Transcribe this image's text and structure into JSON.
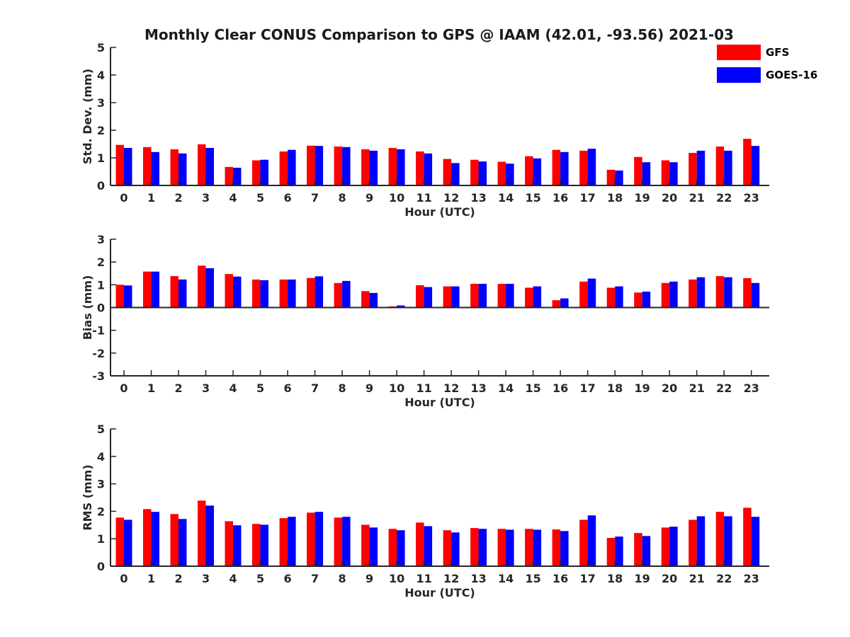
{
  "title": "Monthly Clear CONUS Comparison to GPS @ IAAM (42.01, -93.56) 2021-03",
  "legend": {
    "placement": "top-right",
    "items": [
      {
        "name": "GFS",
        "color": "#ff0000"
      },
      {
        "name": "GOES-16",
        "color": "#0000ff"
      }
    ]
  },
  "chart_data": [
    {
      "type": "bar",
      "title": "Monthly Clear CONUS Comparison to GPS @ IAAM (42.01, -93.56) 2021-03",
      "xlabel": "Hour (UTC)",
      "ylabel": "Std. Dev. (mm)",
      "ylim": [
        0,
        5
      ],
      "yticks": [
        "0",
        "1",
        "2",
        "3",
        "4",
        "5"
      ],
      "grid": false,
      "categories": [
        "0",
        "1",
        "2",
        "3",
        "4",
        "5",
        "6",
        "7",
        "8",
        "9",
        "10",
        "11",
        "12",
        "13",
        "14",
        "15",
        "16",
        "17",
        "18",
        "19",
        "20",
        "21",
        "22",
        "23"
      ],
      "series": [
        {
          "name": "GFS",
          "color": "#ff0000",
          "values": [
            1.47,
            1.39,
            1.31,
            1.49,
            0.67,
            0.91,
            1.23,
            1.44,
            1.41,
            1.31,
            1.36,
            1.23,
            0.96,
            0.93,
            0.86,
            1.06,
            1.29,
            1.26,
            0.57,
            1.03,
            0.91,
            1.18,
            1.41,
            1.69
          ]
        },
        {
          "name": "GOES-16",
          "color": "#0000ff",
          "values": [
            1.36,
            1.21,
            1.16,
            1.36,
            0.64,
            0.93,
            1.29,
            1.43,
            1.39,
            1.26,
            1.31,
            1.16,
            0.81,
            0.87,
            0.79,
            0.98,
            1.21,
            1.33,
            0.54,
            0.84,
            0.84,
            1.26,
            1.26,
            1.43
          ]
        }
      ]
    },
    {
      "type": "bar",
      "xlabel": "Hour (UTC)",
      "ylabel": "Bias (mm)",
      "ylim": [
        -3,
        3
      ],
      "yticks": [
        "-3",
        "-2",
        "-1",
        "0",
        "1",
        "2",
        "3"
      ],
      "grid": false,
      "categories": [
        "0",
        "1",
        "2",
        "3",
        "4",
        "5",
        "6",
        "7",
        "8",
        "9",
        "10",
        "11",
        "12",
        "13",
        "14",
        "15",
        "16",
        "17",
        "18",
        "19",
        "20",
        "21",
        "22",
        "23"
      ],
      "series": [
        {
          "name": "GFS",
          "color": "#ff0000",
          "values": [
            1.0,
            1.58,
            1.38,
            1.84,
            1.47,
            1.23,
            1.23,
            1.3,
            1.08,
            0.72,
            0.05,
            0.98,
            0.93,
            1.04,
            1.04,
            0.87,
            0.32,
            1.14,
            0.87,
            0.66,
            1.08,
            1.23,
            1.38,
            1.29
          ]
        },
        {
          "name": "GOES-16",
          "color": "#0000ff",
          "values": [
            0.97,
            1.58,
            1.23,
            1.73,
            1.36,
            1.2,
            1.23,
            1.37,
            1.17,
            0.64,
            0.09,
            0.9,
            0.93,
            1.04,
            1.04,
            0.93,
            0.4,
            1.27,
            0.93,
            0.7,
            1.14,
            1.33,
            1.33,
            1.08
          ]
        }
      ]
    },
    {
      "type": "bar",
      "xlabel": "Hour (UTC)",
      "ylabel": "RMS (mm)",
      "ylim": [
        0,
        5
      ],
      "yticks": [
        "0",
        "1",
        "2",
        "3",
        "4",
        "5"
      ],
      "grid": false,
      "categories": [
        "0",
        "1",
        "2",
        "3",
        "4",
        "5",
        "6",
        "7",
        "8",
        "9",
        "10",
        "11",
        "12",
        "13",
        "14",
        "15",
        "16",
        "17",
        "18",
        "19",
        "20",
        "21",
        "22",
        "23"
      ],
      "series": [
        {
          "name": "GFS",
          "color": "#ff0000",
          "values": [
            1.77,
            2.08,
            1.9,
            2.39,
            1.64,
            1.54,
            1.75,
            1.95,
            1.77,
            1.51,
            1.36,
            1.59,
            1.31,
            1.39,
            1.36,
            1.36,
            1.34,
            1.69,
            1.03,
            1.21,
            1.41,
            1.69,
            1.98,
            2.13
          ]
        },
        {
          "name": "GOES-16",
          "color": "#0000ff",
          "values": [
            1.69,
            1.98,
            1.72,
            2.21,
            1.49,
            1.51,
            1.8,
            1.98,
            1.8,
            1.41,
            1.31,
            1.46,
            1.23,
            1.36,
            1.33,
            1.33,
            1.28,
            1.85,
            1.08,
            1.1,
            1.44,
            1.82,
            1.82,
            1.8
          ]
        }
      ]
    }
  ]
}
